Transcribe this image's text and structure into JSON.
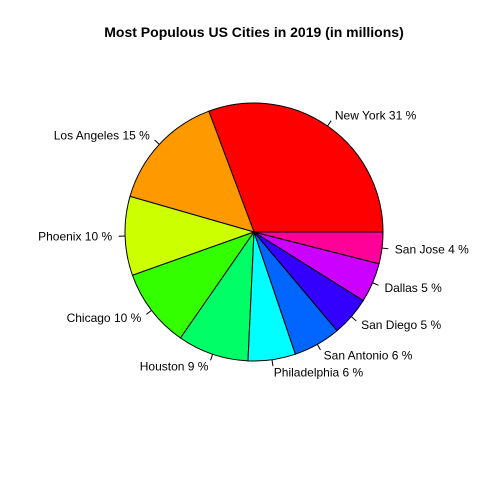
{
  "chart_data": {
    "type": "pie",
    "title": "Most Populous US Cities in 2019 (in millions)",
    "direction": "counterclockwise",
    "start_angle_deg": 0,
    "slices": [
      {
        "label": "New York 31 %",
        "name": "New York",
        "percent": 31,
        "color": "#FF0000"
      },
      {
        "label": "Los Angeles 15 %",
        "name": "Los Angeles",
        "percent": 15,
        "color": "#FF9900"
      },
      {
        "label": "Phoenix 10 %",
        "name": "Phoenix",
        "percent": 10,
        "color": "#CCFF00"
      },
      {
        "label": "Chicago 10 %",
        "name": "Chicago",
        "percent": 10,
        "color": "#33FF00"
      },
      {
        "label": "Houston 9 %",
        "name": "Houston",
        "percent": 9,
        "color": "#00FF66"
      },
      {
        "label": "Philadelphia 6 %",
        "name": "Philadelphia",
        "percent": 6,
        "color": "#00FFFF"
      },
      {
        "label": "San Antonio 6 %",
        "name": "San Antonio",
        "percent": 6,
        "color": "#0066FF"
      },
      {
        "label": "San Diego 5 %",
        "name": "San Diego",
        "percent": 5,
        "color": "#3300FF"
      },
      {
        "label": "Dallas 5 %",
        "name": "Dallas",
        "percent": 5,
        "color": "#CC00FF"
      },
      {
        "label": "San Jose 4 %",
        "name": "San Jose",
        "percent": 4,
        "color": "#FF0099"
      }
    ]
  }
}
